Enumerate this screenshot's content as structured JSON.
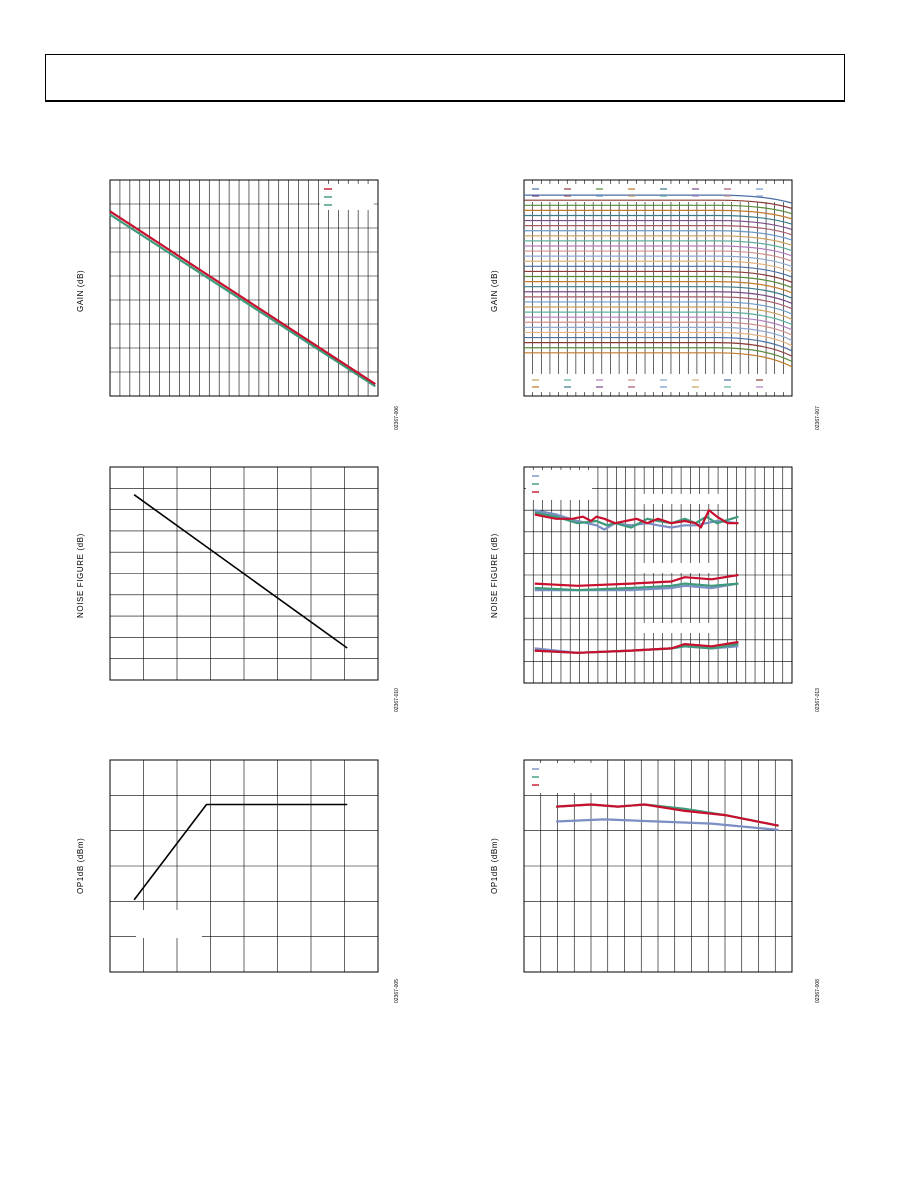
{
  "header": {},
  "colors": {
    "grid": "#000000",
    "series_red": "#c8102e",
    "series_green": "#3d9a7a",
    "series_blue": "#7b8fc4",
    "black_line": "#000000"
  },
  "panels": [
    {
      "id": "p1",
      "ylabel": "GAIN (dB)",
      "code": "02367-006",
      "chart_data": {
        "type": "line",
        "grid": true,
        "legend_placement": "top-right",
        "xlim": [
          0,
          1
        ],
        "ylim": [
          0,
          1
        ],
        "vlines": 26,
        "hlines": 8,
        "series": [
          {
            "color": "series_green",
            "points": [
              [
                0,
                0.84
              ],
              [
                0.99,
                0.045
              ]
            ]
          },
          {
            "color": "series_red",
            "points": [
              [
                0,
                0.855
              ],
              [
                0.99,
                0.055
              ]
            ]
          }
        ]
      }
    },
    {
      "id": "p2",
      "ylabel": "GAIN (dB)",
      "code": "02367-007",
      "chart_data": {
        "type": "line",
        "grid": true,
        "legend_placement": "top",
        "xlim": [
          0,
          1
        ],
        "ylim": [
          0,
          1
        ],
        "vlines": 30,
        "hlines": 0,
        "family_count": 32,
        "family_top": 0.93,
        "family_bottom": 0.2
      }
    },
    {
      "id": "p3",
      "ylabel": "NOISE FIGURE (dB)",
      "code": "02367-010",
      "chart_data": {
        "type": "line",
        "grid": true,
        "xlim": [
          0,
          1
        ],
        "ylim": [
          0,
          1
        ],
        "vlines": 7,
        "hlines": 9,
        "series": [
          {
            "color": "black_line",
            "points": [
              [
                0.09,
                0.87
              ],
              [
                0.885,
                0.15
              ]
            ]
          }
        ]
      }
    },
    {
      "id": "p4",
      "ylabel": "NOISE FIGURE (dB)",
      "code": "02367-013",
      "chart_data": {
        "type": "line",
        "grid": true,
        "legend_placement": "top-left",
        "xlim": [
          0,
          1
        ],
        "ylim": [
          0,
          1
        ],
        "vlines": 28,
        "hlines": 9,
        "series": [
          {
            "color": "series_blue",
            "points": [
              [
                0.04,
                0.8
              ],
              [
                0.12,
                0.78
              ],
              [
                0.2,
                0.75
              ],
              [
                0.27,
                0.73
              ],
              [
                0.3,
                0.71
              ],
              [
                0.34,
                0.74
              ],
              [
                0.4,
                0.73
              ],
              [
                0.46,
                0.74
              ],
              [
                0.5,
                0.73
              ],
              [
                0.55,
                0.72
              ],
              [
                0.6,
                0.73
              ],
              [
                0.64,
                0.73
              ],
              [
                0.68,
                0.74
              ],
              [
                0.72,
                0.75
              ],
              [
                0.8,
                0.74
              ]
            ]
          },
          {
            "color": "series_green",
            "points": [
              [
                0.04,
                0.79
              ],
              [
                0.12,
                0.77
              ],
              [
                0.2,
                0.74
              ],
              [
                0.27,
                0.75
              ],
              [
                0.31,
                0.73
              ],
              [
                0.34,
                0.74
              ],
              [
                0.4,
                0.72
              ],
              [
                0.46,
                0.76
              ],
              [
                0.5,
                0.75
              ],
              [
                0.55,
                0.74
              ],
              [
                0.6,
                0.76
              ],
              [
                0.64,
                0.74
              ],
              [
                0.68,
                0.77
              ],
              [
                0.72,
                0.74
              ],
              [
                0.8,
                0.77
              ]
            ]
          },
          {
            "color": "series_red",
            "points": [
              [
                0.04,
                0.78
              ],
              [
                0.08,
                0.77
              ],
              [
                0.12,
                0.76
              ],
              [
                0.18,
                0.76
              ],
              [
                0.22,
                0.77
              ],
              [
                0.25,
                0.75
              ],
              [
                0.27,
                0.77
              ],
              [
                0.3,
                0.76
              ],
              [
                0.34,
                0.74
              ],
              [
                0.38,
                0.75
              ],
              [
                0.42,
                0.76
              ],
              [
                0.46,
                0.74
              ],
              [
                0.5,
                0.76
              ],
              [
                0.55,
                0.74
              ],
              [
                0.6,
                0.75
              ],
              [
                0.64,
                0.74
              ],
              [
                0.66,
                0.72
              ],
              [
                0.69,
                0.8
              ],
              [
                0.72,
                0.77
              ],
              [
                0.76,
                0.74
              ],
              [
                0.8,
                0.74
              ]
            ]
          },
          {
            "color": "series_blue",
            "points": [
              [
                0.04,
                0.43
              ],
              [
                0.2,
                0.43
              ],
              [
                0.4,
                0.43
              ],
              [
                0.55,
                0.44
              ],
              [
                0.6,
                0.45
              ],
              [
                0.7,
                0.44
              ],
              [
                0.8,
                0.46
              ]
            ]
          },
          {
            "color": "series_green",
            "points": [
              [
                0.04,
                0.44
              ],
              [
                0.2,
                0.43
              ],
              [
                0.4,
                0.44
              ],
              [
                0.55,
                0.45
              ],
              [
                0.6,
                0.46
              ],
              [
                0.7,
                0.45
              ],
              [
                0.8,
                0.46
              ]
            ]
          },
          {
            "color": "series_red",
            "points": [
              [
                0.04,
                0.46
              ],
              [
                0.2,
                0.45
              ],
              [
                0.4,
                0.46
              ],
              [
                0.55,
                0.47
              ],
              [
                0.6,
                0.49
              ],
              [
                0.7,
                0.48
              ],
              [
                0.8,
                0.5
              ]
            ]
          },
          {
            "color": "series_blue",
            "points": [
              [
                0.04,
                0.16
              ],
              [
                0.2,
                0.14
              ],
              [
                0.4,
                0.15
              ],
              [
                0.55,
                0.16
              ],
              [
                0.6,
                0.17
              ],
              [
                0.7,
                0.16
              ],
              [
                0.8,
                0.17
              ]
            ]
          },
          {
            "color": "series_green",
            "points": [
              [
                0.04,
                0.15
              ],
              [
                0.2,
                0.14
              ],
              [
                0.4,
                0.15
              ],
              [
                0.55,
                0.16
              ],
              [
                0.6,
                0.17
              ],
              [
                0.7,
                0.16
              ],
              [
                0.8,
                0.18
              ]
            ]
          },
          {
            "color": "series_red",
            "points": [
              [
                0.04,
                0.15
              ],
              [
                0.2,
                0.14
              ],
              [
                0.4,
                0.15
              ],
              [
                0.55,
                0.16
              ],
              [
                0.6,
                0.18
              ],
              [
                0.7,
                0.17
              ],
              [
                0.8,
                0.19
              ]
            ]
          }
        ]
      }
    },
    {
      "id": "p5",
      "ylabel": "OP1dB (dBm)",
      "code": "02367-005",
      "chart_data": {
        "type": "line",
        "grid": true,
        "xlim": [
          0,
          1
        ],
        "ylim": [
          0,
          1
        ],
        "vlines": 7,
        "hlines": 5,
        "series": [
          {
            "color": "black_line",
            "points": [
              [
                0.09,
                0.34
              ],
              [
                0.36,
                0.79
              ],
              [
                0.885,
                0.79
              ]
            ]
          }
        ]
      }
    },
    {
      "id": "p6",
      "ylabel": "OP1dB (dBm)",
      "code": "02367-008",
      "chart_data": {
        "type": "line",
        "grid": true,
        "legend_placement": "top-left",
        "xlim": [
          0,
          1
        ],
        "ylim": [
          0,
          1
        ],
        "vlines": 15,
        "hlines": 5,
        "series": [
          {
            "color": "series_blue",
            "points": [
              [
                0.12,
                0.71
              ],
              [
                0.3,
                0.72
              ],
              [
                0.5,
                0.71
              ],
              [
                0.7,
                0.7
              ],
              [
                0.95,
                0.67
              ]
            ]
          },
          {
            "color": "series_green",
            "points": [
              [
                0.12,
                0.78
              ],
              [
                0.25,
                0.79
              ],
              [
                0.35,
                0.78
              ],
              [
                0.45,
                0.79
              ],
              [
                0.6,
                0.77
              ],
              [
                0.75,
                0.74
              ],
              [
                0.95,
                0.69
              ]
            ]
          },
          {
            "color": "series_red",
            "points": [
              [
                0.12,
                0.78
              ],
              [
                0.25,
                0.79
              ],
              [
                0.35,
                0.78
              ],
              [
                0.45,
                0.79
              ],
              [
                0.6,
                0.76
              ],
              [
                0.75,
                0.74
              ],
              [
                0.95,
                0.69
              ]
            ]
          }
        ]
      }
    }
  ]
}
